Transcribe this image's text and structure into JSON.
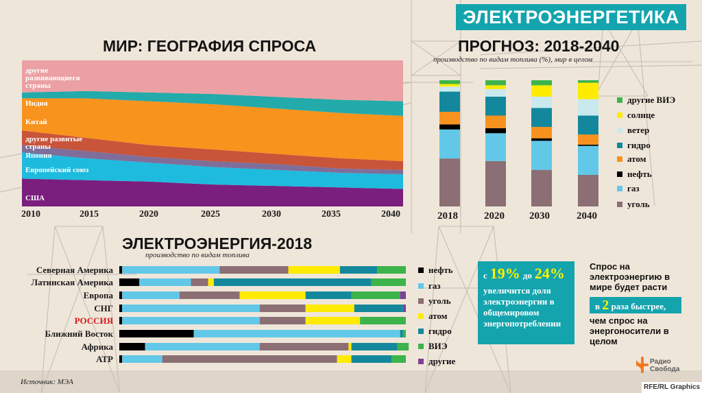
{
  "banner_title": "ЭЛЕКТРОЭНЕРГЕТИКА",
  "colors": {
    "teal": "#14a4ad",
    "coal": "#8b6f74",
    "gas": "#62c8e8",
    "oil": "#000000",
    "nuclear": "#f7921e",
    "hydro": "#13889c",
    "wind": "#c9e9ee",
    "solar": "#ffeb00",
    "other_renewables": "#3cb44b",
    "other": "#7f3f98",
    "developing": "#eba0a3",
    "india": "#23aaab",
    "china": "#f8931d",
    "developed": "#c85439",
    "japan": "#7f6e9a",
    "eu": "#1ebbde",
    "usa": "#7a1f7e"
  },
  "chart_data": [
    {
      "type": "area",
      "title": "МИР: ГЕОГРАФИЯ СПРОСА",
      "x": [
        2010,
        2015,
        2020,
        2025,
        2030,
        2035,
        2040
      ],
      "stacked": true,
      "ylim": [
        0,
        100
      ],
      "series": [
        {
          "name": "США",
          "values": [
            19,
            18,
            17,
            15,
            14,
            13,
            12
          ],
          "color": "#7a1f7e"
        },
        {
          "name": "Европейский союз",
          "values": [
            18,
            15,
            13,
            12,
            11,
            10,
            10
          ],
          "color": "#1ebbde"
        },
        {
          "name": "Япония",
          "values": [
            5,
            5,
            4,
            4,
            4,
            3,
            3
          ],
          "color": "#7f6e9a"
        },
        {
          "name": "другие развитые страны",
          "values": [
            10,
            9,
            8,
            8,
            7,
            7,
            6
          ],
          "color": "#c85439"
        },
        {
          "name": "Китай",
          "values": [
            22,
            27,
            30,
            31,
            31,
            31,
            31
          ],
          "color": "#f8931d"
        },
        {
          "name": "Индия",
          "values": [
            4,
            5,
            6,
            7,
            8,
            9,
            10
          ],
          "color": "#23aaab"
        },
        {
          "name": "другие развивающиеся страны",
          "values": [
            22,
            21,
            22,
            23,
            25,
            27,
            28
          ],
          "color": "#eba0a3"
        }
      ]
    },
    {
      "type": "bar",
      "title": "ПРОГНОЗ: 2018-2040",
      "subtitle": "производство по видам топлива (%), мир в целом",
      "categories": [
        "2018",
        "2020",
        "2030",
        "2040"
      ],
      "stacked": true,
      "ylim": [
        0,
        100
      ],
      "series": [
        {
          "name": "уголь",
          "values": [
            38,
            36,
            29,
            25
          ],
          "color": "#8b6f74"
        },
        {
          "name": "газ",
          "values": [
            23,
            22,
            23,
            23
          ],
          "color": "#62c8e8"
        },
        {
          "name": "нефть",
          "values": [
            4,
            4,
            2,
            1
          ],
          "color": "#000000"
        },
        {
          "name": "атом",
          "values": [
            10,
            10,
            9,
            8
          ],
          "color": "#f7921e"
        },
        {
          "name": "гидро",
          "values": [
            16,
            15,
            15,
            15
          ],
          "color": "#13889c"
        },
        {
          "name": "ветер",
          "values": [
            4,
            6,
            9,
            13
          ],
          "color": "#c9e9ee"
        },
        {
          "name": "солнце",
          "values": [
            2,
            3,
            9,
            13
          ],
          "color": "#ffeb00"
        },
        {
          "name": "другие ВИЭ",
          "values": [
            3,
            4,
            4,
            2
          ],
          "color": "#3cb44b"
        }
      ]
    },
    {
      "type": "bar",
      "orientation": "horizontal",
      "title": "ЭЛЕКТРОЭНЕРГИЯ-2018",
      "subtitle": "производство по видам топлива",
      "categories": [
        "Северная Америка",
        "Латинская Америка",
        "Европа",
        "СНГ",
        "РОССИЯ",
        "Ближний Восток",
        "Африка",
        "АТР"
      ],
      "stacked": true,
      "xlim": [
        0,
        100
      ],
      "series": [
        {
          "name": "нефть",
          "values": [
            1,
            7,
            1,
            1,
            1,
            26,
            9,
            1
          ],
          "color": "#000000"
        },
        {
          "name": "газ",
          "values": [
            34,
            18,
            20,
            48,
            48,
            72,
            40,
            14
          ],
          "color": "#62c8e8"
        },
        {
          "name": "уголь",
          "values": [
            24,
            6,
            21,
            16,
            16,
            0,
            31,
            61
          ],
          "color": "#8b6f74"
        },
        {
          "name": "атом",
          "values": [
            18,
            2,
            23,
            17,
            19,
            0,
            1,
            5
          ],
          "color": "#ffeb00"
        },
        {
          "name": "гидро",
          "values": [
            13,
            55,
            16,
            17,
            0,
            1,
            16,
            14
          ],
          "color": "#13889c"
        },
        {
          "name": "ВИЭ",
          "values": [
            10,
            12,
            17,
            0,
            16,
            1,
            4,
            5
          ],
          "color": "#3cb44b"
        },
        {
          "name": "другие",
          "values": [
            0,
            0,
            2,
            1,
            0,
            0,
            0,
            0
          ],
          "color": "#7f3f98"
        }
      ]
    }
  ],
  "area_labels": {
    "developing": "другие развивающиеся страны",
    "india": "Индия",
    "china": "Китай",
    "developed": "другие развитые страны",
    "japan": "Япония",
    "eu": "Европейский союз",
    "usa": "США"
  },
  "area_years": [
    "2010",
    "2015",
    "2020",
    "2025",
    "2030",
    "2035",
    "2040"
  ],
  "forecast_legend": [
    "другие ВИЭ",
    "солнце",
    "ветер",
    "гидро",
    "атом",
    "нефть",
    "газ",
    "уголь"
  ],
  "elec_legend": [
    "нефть",
    "газ",
    "уголь",
    "атом",
    "гидро",
    "ВИЭ",
    "другие"
  ],
  "highlight_box": {
    "pre": "с",
    "from": "19%",
    "mid": "до",
    "to": "24%",
    "text": "увеличится доля электроэнергии в общемировом энергопотреблении"
  },
  "right_note": {
    "line1": "Спрос на электроэнергию в мире будет расти",
    "box_pre": "в",
    "box_num": "2",
    "box_post": "раза быстрее,",
    "line2": "чем спрос на энергоносители в целом"
  },
  "source": "Источник:  МЭА",
  "logo_text": "Радио Свобода",
  "credit": "RFE/RL Graphics"
}
